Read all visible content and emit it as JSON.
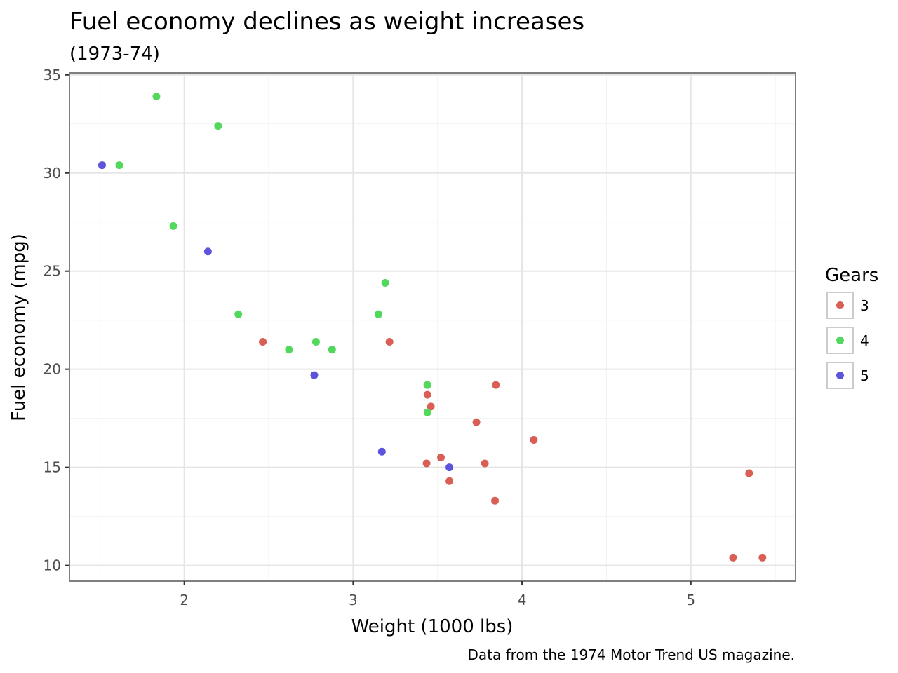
{
  "chart_data": {
    "type": "scatter",
    "title": "Fuel economy declines as weight increases",
    "subtitle": "(1973-74)",
    "caption": "Data from the 1974 Motor Trend US magazine.",
    "xlabel": "Weight (1000 lbs)",
    "ylabel": "Fuel economy (mpg)",
    "xlim": [
      1.32,
      5.62
    ],
    "ylim": [
      9.2,
      35.1
    ],
    "xticks": [
      2,
      3,
      4,
      5
    ],
    "yticks": [
      10,
      15,
      20,
      25,
      30,
      35
    ],
    "x_minor": [
      1.5,
      2.5,
      3.5,
      4.5,
      5.5
    ],
    "y_minor": [
      12.5,
      17.5,
      22.5,
      27.5,
      32.5
    ],
    "grid": true,
    "legend": {
      "title": "Gears",
      "position": "right"
    },
    "series": [
      {
        "name": "3",
        "color": "#d95f56",
        "points": [
          [
            2.465,
            21.4
          ],
          [
            3.215,
            21.4
          ],
          [
            3.44,
            18.7
          ],
          [
            3.46,
            18.1
          ],
          [
            3.57,
            14.3
          ],
          [
            3.44,
            19.2
          ],
          [
            4.07,
            16.4
          ],
          [
            3.73,
            17.3
          ],
          [
            3.78,
            15.2
          ],
          [
            5.25,
            10.4
          ],
          [
            5.424,
            10.4
          ],
          [
            5.345,
            14.7
          ],
          [
            3.52,
            15.5
          ],
          [
            3.435,
            15.2
          ],
          [
            3.84,
            13.3
          ],
          [
            3.845,
            19.2
          ]
        ]
      },
      {
        "name": "4",
        "color": "#53d85e",
        "points": [
          [
            2.62,
            21.0
          ],
          [
            2.875,
            21.0
          ],
          [
            2.32,
            22.8
          ],
          [
            3.19,
            24.4
          ],
          [
            3.15,
            22.8
          ],
          [
            3.44,
            19.2
          ],
          [
            3.44,
            17.8
          ],
          [
            2.2,
            32.4
          ],
          [
            1.615,
            30.4
          ],
          [
            1.835,
            33.9
          ],
          [
            1.935,
            27.3
          ],
          [
            2.78,
            21.4
          ]
        ]
      },
      {
        "name": "5",
        "color": "#5c55db",
        "points": [
          [
            2.14,
            26.0
          ],
          [
            1.513,
            30.4
          ],
          [
            3.17,
            15.8
          ],
          [
            2.77,
            19.7
          ],
          [
            3.57,
            15.0
          ]
        ]
      }
    ]
  }
}
